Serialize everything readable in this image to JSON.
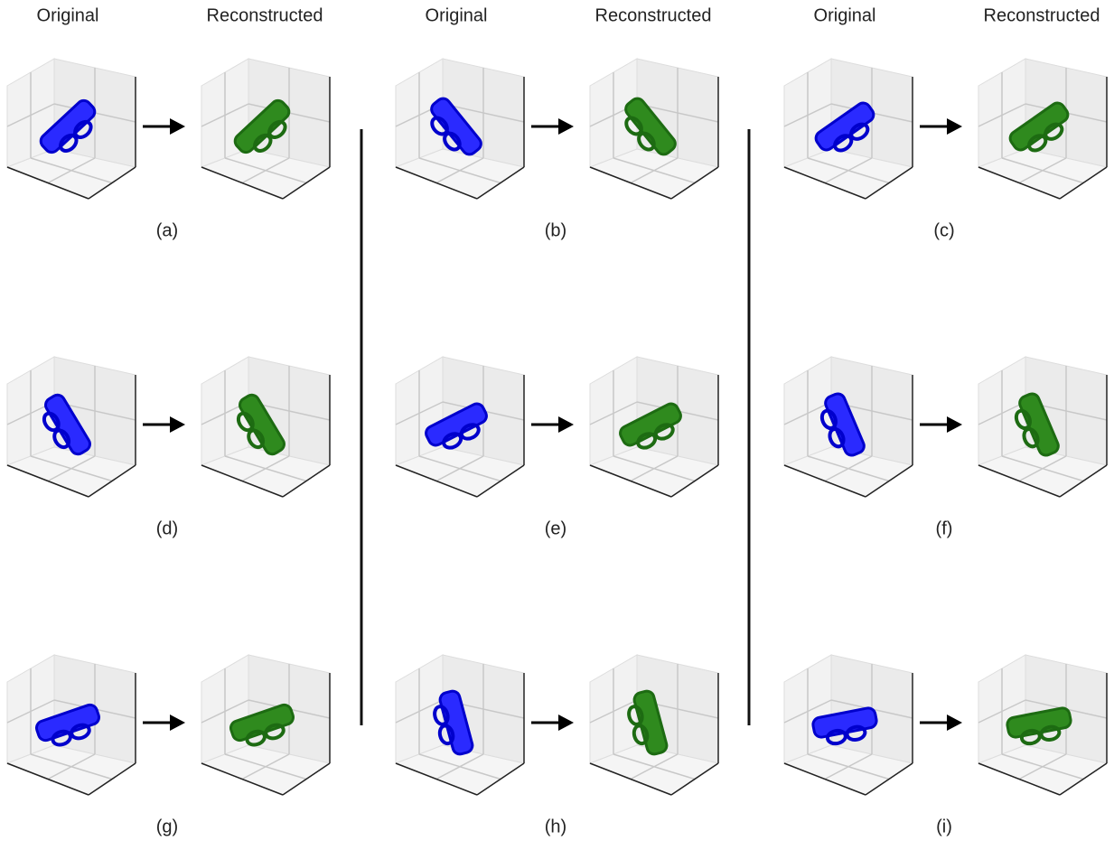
{
  "columns": [
    {
      "original": "Original",
      "reconstructed": "Reconstructed"
    },
    {
      "original": "Original",
      "reconstructed": "Reconstructed"
    },
    {
      "original": "Original",
      "reconstructed": "Reconstructed"
    }
  ],
  "panels": [
    {
      "label": "(a)"
    },
    {
      "label": "(b)"
    },
    {
      "label": "(c)"
    },
    {
      "label": "(d)"
    },
    {
      "label": "(e)"
    },
    {
      "label": "(f)"
    },
    {
      "label": "(g)"
    },
    {
      "label": "(h)"
    },
    {
      "label": "(i)"
    }
  ]
}
